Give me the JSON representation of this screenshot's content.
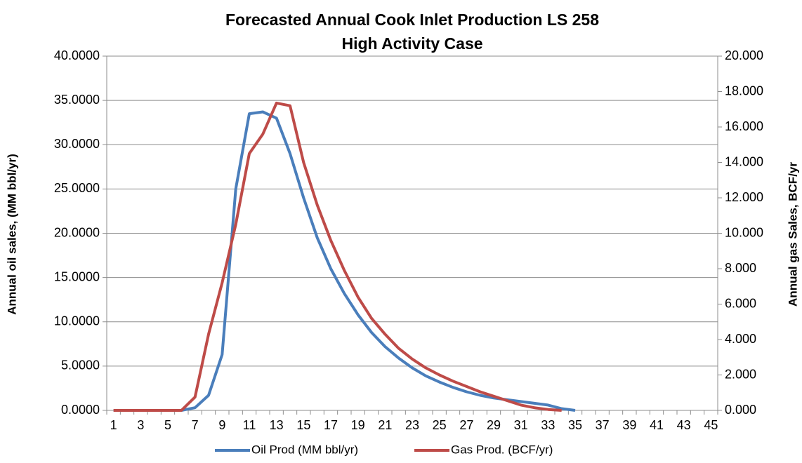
{
  "chart_data": {
    "type": "line",
    "title": "Forecasted Annual Cook Inlet Production LS 258",
    "subtitle": "High Activity Case",
    "y_label": "Annual oil sales, (MM bbl/yr)",
    "y2_label": "Annual gas Sales, BCF/yr",
    "categories": [
      "1",
      null,
      "3",
      null,
      "5",
      null,
      "7",
      null,
      "9",
      null,
      "11",
      null,
      "13",
      null,
      "15",
      null,
      "17",
      null,
      "19",
      null,
      "21",
      null,
      "23",
      null,
      "25",
      null,
      "27",
      null,
      "29",
      null,
      "31",
      null,
      "33",
      null,
      "35",
      null,
      "37",
      null,
      "39",
      null,
      "41",
      null,
      "43",
      null,
      "45"
    ],
    "series": [
      {
        "name": "Oil Prod (MM bbl/yr)",
        "color": "#4a7ebb",
        "axis": "y",
        "values": [
          0,
          0,
          0,
          0,
          0,
          0,
          0.3,
          1.7,
          6.3,
          25,
          33.5,
          33.7,
          33,
          29,
          24,
          19.5,
          16,
          13.2,
          10.8,
          8.8,
          7.2,
          5.9,
          4.8,
          3.9,
          3.2,
          2.6,
          2.1,
          1.7,
          1.4,
          1.2,
          1.0,
          0.8,
          0.6,
          0.2,
          0,
          null,
          null,
          null,
          null,
          null,
          null,
          null,
          null,
          null,
          null
        ]
      },
      {
        "name": "Gas Prod. (BCF/yr)",
        "color": "#be4b48",
        "axis": "y2",
        "values": [
          0,
          0,
          0,
          0,
          0,
          0,
          0.75,
          4.3,
          7.2,
          10.5,
          14.5,
          15.6,
          17.35,
          17.2,
          14.0,
          11.6,
          9.6,
          7.9,
          6.4,
          5.2,
          4.3,
          3.5,
          2.9,
          2.4,
          2.0,
          1.65,
          1.35,
          1.05,
          0.8,
          0.55,
          0.3,
          0.15,
          0.05,
          0,
          null,
          null,
          null,
          null,
          null,
          null,
          null,
          null,
          null,
          null,
          null
        ]
      }
    ],
    "ylim": [
      0,
      40
    ],
    "yticks": [
      {
        "value": 0,
        "label": "0.0000"
      },
      {
        "value": 5,
        "label": "5.0000"
      },
      {
        "value": 10,
        "label": "10.0000"
      },
      {
        "value": 15,
        "label": "15.0000"
      },
      {
        "value": 20,
        "label": "20.0000"
      },
      {
        "value": 25,
        "label": "25.0000"
      },
      {
        "value": 30,
        "label": "30.0000"
      },
      {
        "value": 35,
        "label": "35.0000"
      },
      {
        "value": 40,
        "label": "40.0000"
      }
    ],
    "y2lim": [
      0,
      20
    ],
    "y2ticks": [
      {
        "value": 0,
        "label": "0.000"
      },
      {
        "value": 2,
        "label": "2.000"
      },
      {
        "value": 4,
        "label": "4.000"
      },
      {
        "value": 6,
        "label": "6.000"
      },
      {
        "value": 8,
        "label": "8.000"
      },
      {
        "value": 10,
        "label": "10.000"
      },
      {
        "value": 12,
        "label": "12.000"
      },
      {
        "value": 14,
        "label": "14.000"
      },
      {
        "value": 16,
        "label": "16.000"
      },
      {
        "value": 18,
        "label": "18.000"
      },
      {
        "value": 20,
        "label": "20.000"
      }
    ],
    "grid": true,
    "legend": "bottom"
  }
}
